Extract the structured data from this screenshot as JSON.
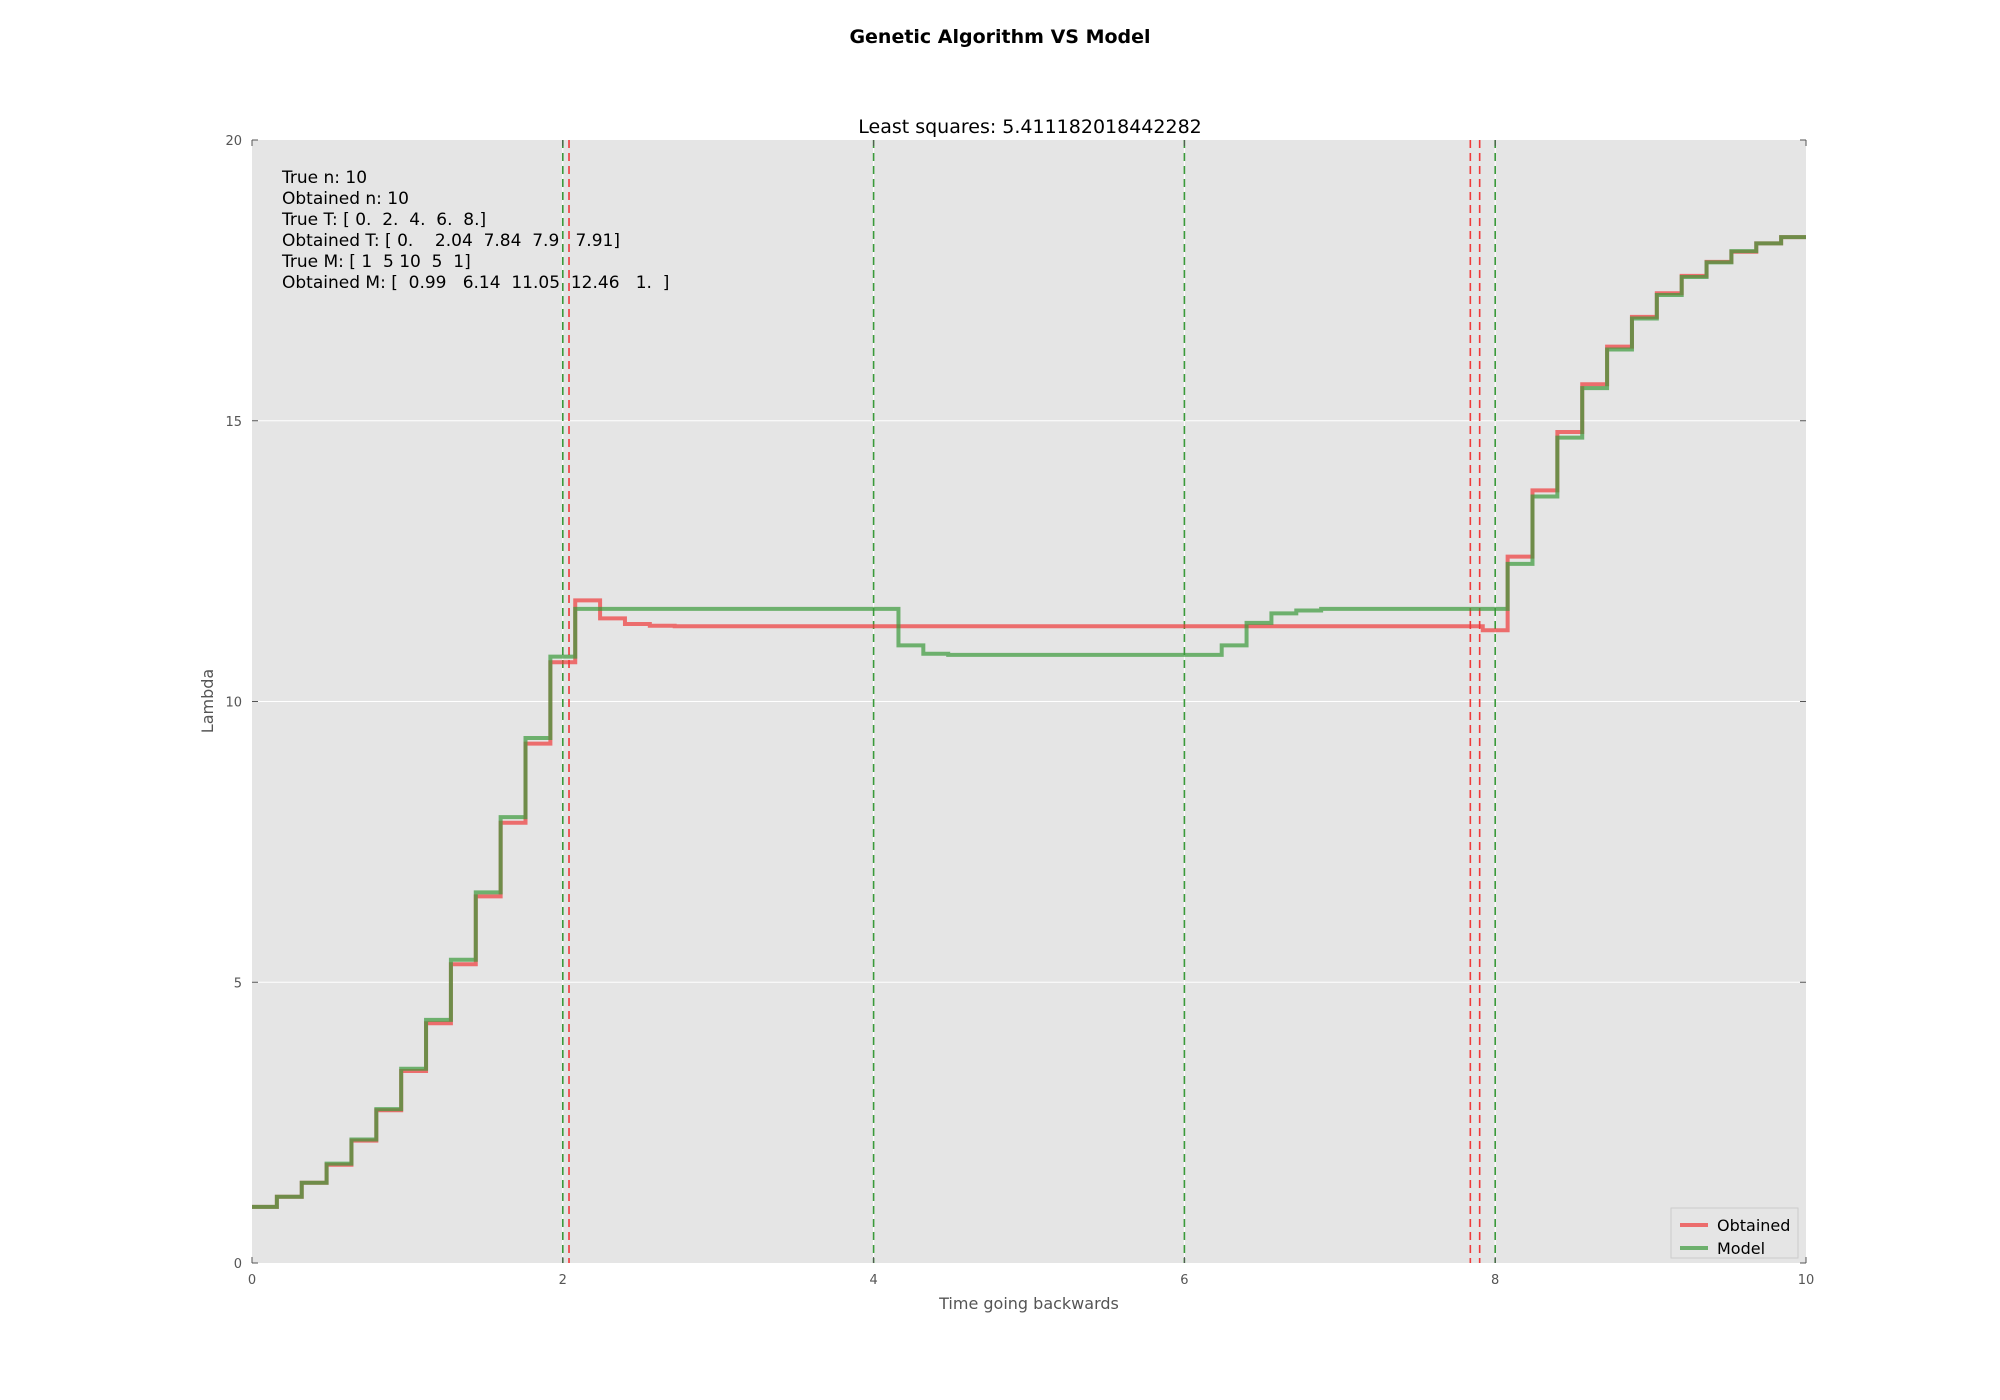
{
  "chart_data": {
    "type": "line",
    "suptitle": "Genetic Algorithm VS Model",
    "title": "Least squares: 5.411182018442282",
    "xlabel": "Time going backwards",
    "ylabel": "Lambda",
    "xlim": [
      0,
      10
    ],
    "ylim": [
      0,
      20
    ],
    "xticks": [
      "0",
      "2",
      "4",
      "6",
      "8",
      "10"
    ],
    "yticks": [
      "0",
      "5",
      "10",
      "15",
      "20"
    ],
    "grid": true,
    "legend_position": "bottom-right",
    "annotations": [
      "True n: 10",
      "Obtained n: 10",
      "True T: [ 0.  2.  4.  6.  8.]",
      "Obtained T: [ 0.    2.04  7.84  7.9   7.91]",
      "True M: [ 1  5 10  5  1]",
      "Obtained M: [  0.99   6.14  11.05  12.46   1.  ]"
    ],
    "vlines": [
      {
        "series": "Model",
        "x": [
          2,
          4,
          6,
          8
        ]
      },
      {
        "series": "Obtained",
        "x": [
          2.04,
          7.84,
          7.9
        ]
      }
    ],
    "series": [
      {
        "name": "Obtained",
        "color": "#f03a3a",
        "step": "post",
        "x": [
          0,
          0.16,
          0.32,
          0.48,
          0.64,
          0.8,
          0.96,
          1.12,
          1.28,
          1.44,
          1.6,
          1.76,
          1.92,
          2.08,
          2.24,
          2.4,
          2.56,
          2.72,
          7.92,
          8.08,
          8.24,
          8.4,
          8.56,
          8.72,
          8.88,
          9.04,
          9.2,
          9.36,
          9.52,
          9.68,
          9.84,
          10
        ],
        "y": [
          1.0,
          1.18,
          1.43,
          1.75,
          2.18,
          2.72,
          3.42,
          4.27,
          5.32,
          6.53,
          7.84,
          9.25,
          10.7,
          11.8,
          11.48,
          11.38,
          11.35,
          11.34,
          11.27,
          12.58,
          13.76,
          14.8,
          15.65,
          16.32,
          16.85,
          17.27,
          17.58,
          17.83,
          18.01,
          18.16,
          18.27,
          18.27
        ]
      },
      {
        "name": "Model",
        "color": "#3a9a3a",
        "step": "post",
        "x": [
          0,
          0.16,
          0.32,
          0.48,
          0.64,
          0.8,
          0.96,
          1.12,
          1.28,
          1.44,
          1.6,
          1.76,
          1.92,
          2.08,
          4.16,
          4.32,
          4.48,
          6.24,
          6.4,
          6.56,
          6.72,
          6.88,
          8.08,
          8.24,
          8.4,
          8.56,
          8.72,
          8.88,
          9.04,
          9.2,
          9.36,
          9.52,
          9.68,
          9.84,
          10
        ],
        "y": [
          1.0,
          1.18,
          1.43,
          1.77,
          2.2,
          2.74,
          3.46,
          4.33,
          5.4,
          6.6,
          7.94,
          9.35,
          10.8,
          11.65,
          11.0,
          10.85,
          10.83,
          11.0,
          11.4,
          11.57,
          11.62,
          11.65,
          12.45,
          13.65,
          14.7,
          15.58,
          16.27,
          16.82,
          17.24,
          17.56,
          17.82,
          18.02,
          18.16,
          18.27,
          18.27
        ]
      }
    ]
  }
}
